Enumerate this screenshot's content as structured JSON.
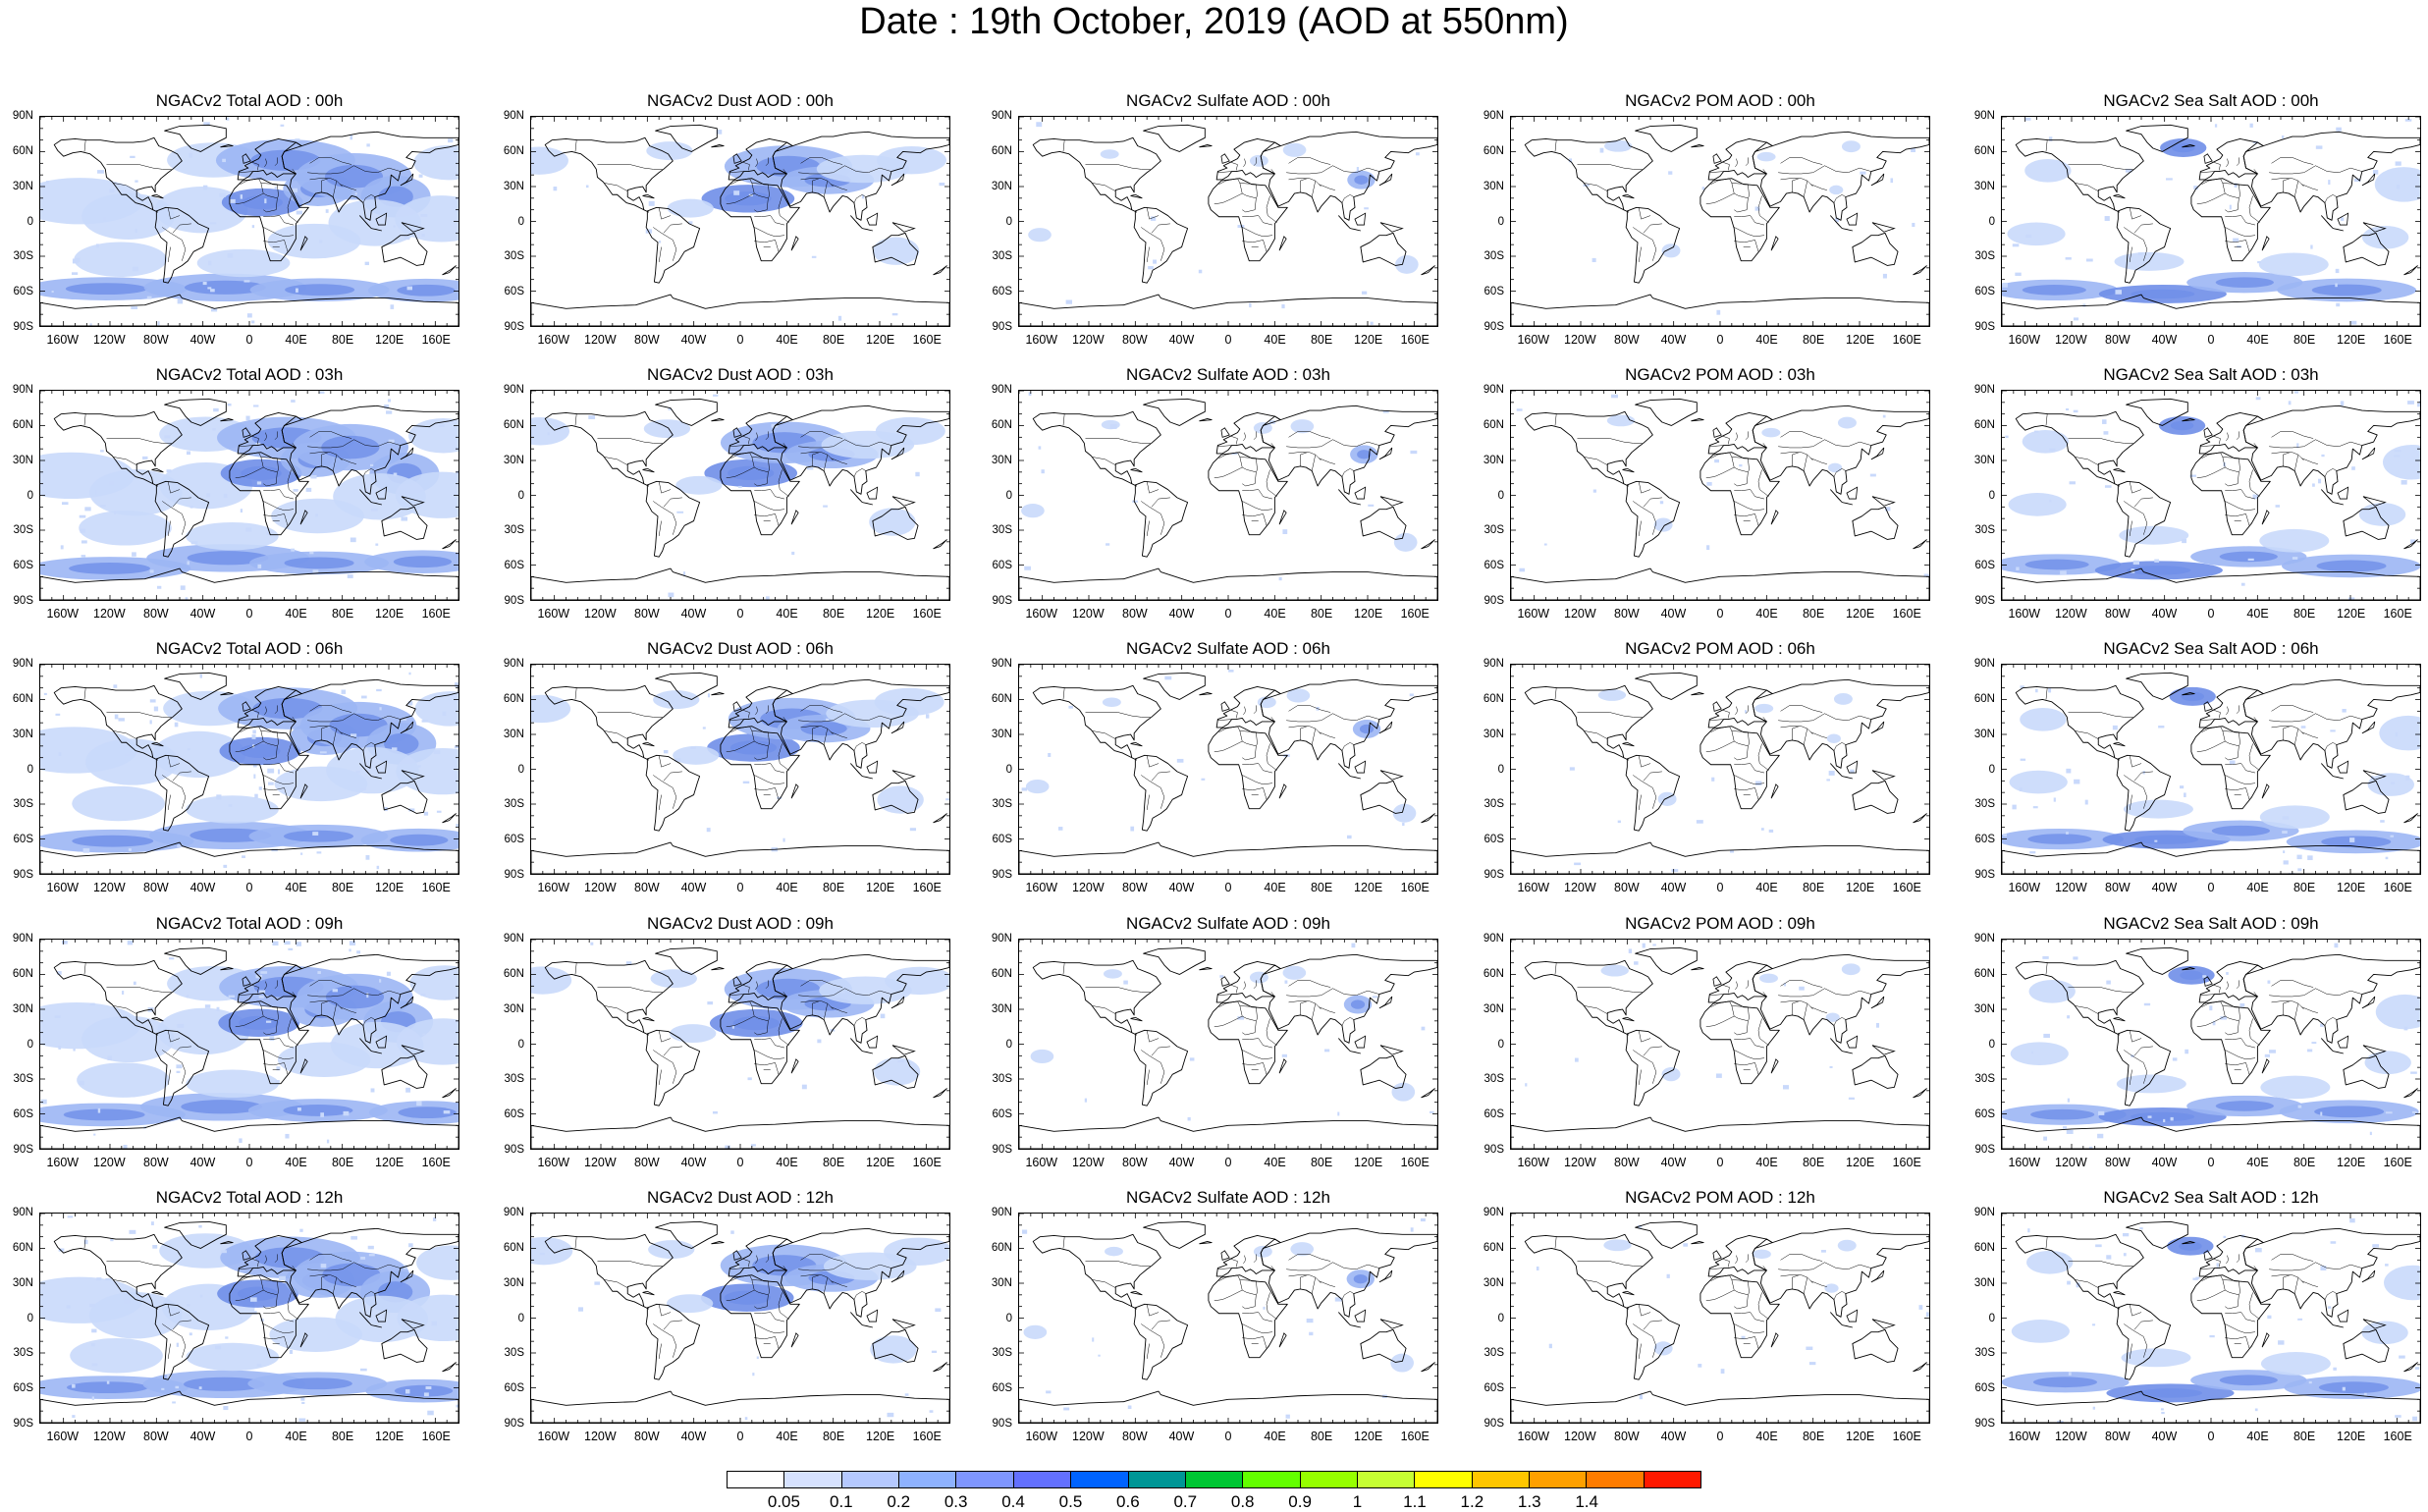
{
  "title": "Date : 19th October, 2019 (AOD at 550nm)",
  "panels": [
    [
      "NGACv2 Total AOD : 00h",
      "NGACv2 Dust AOD : 00h",
      "NGACv2 Sulfate AOD : 00h",
      "NGACv2 POM AOD : 00h",
      "NGACv2 Sea Salt AOD : 00h"
    ],
    [
      "NGACv2 Total AOD : 03h",
      "NGACv2 Dust AOD : 03h",
      "NGACv2 Sulfate AOD : 03h",
      "NGACv2 POM AOD : 03h",
      "NGACv2 Sea Salt AOD : 03h"
    ],
    [
      "NGACv2 Total AOD : 06h",
      "NGACv2 Dust AOD : 06h",
      "NGACv2 Sulfate AOD : 06h",
      "NGACv2 POM AOD : 06h",
      "NGACv2 Sea Salt AOD : 06h"
    ],
    [
      "NGACv2 Total AOD : 09h",
      "NGACv2 Dust AOD : 09h",
      "NGACv2 Sulfate AOD : 09h",
      "NGACv2 POM AOD : 09h",
      "NGACv2 Sea Salt  AOD : 09h"
    ],
    [
      "NGACv2 Total AOD : 12h",
      "NGACv2 Dust AOD : 12h",
      "NGACv2 Sulfate AOD : 12h",
      "NGACv2 POM  AOD : 12h",
      "NGACv2 Sea Salt AOD : 12h"
    ]
  ],
  "lat_ticks": [
    "90N",
    "60N",
    "30N",
    "0",
    "30S",
    "60S",
    "90S"
  ],
  "lon_ticks": [
    "160W",
    "120W",
    "80W",
    "40W",
    "0",
    "40E",
    "80E",
    "120E",
    "160E"
  ],
  "colorbar": {
    "labels": [
      "0.05",
      "0.1",
      "0.2",
      "0.3",
      "0.4",
      "0.5",
      "0.6",
      "0.7",
      "0.8",
      "0.9",
      "1",
      "1.1",
      "1.2",
      "1.3",
      "1.4"
    ],
    "colors": [
      "#ffffff",
      "#d6e2ff",
      "#b5c9ff",
      "#8eb2ff",
      "#7f96ff",
      "#6370ff",
      "#0063ff",
      "#009696",
      "#00c633",
      "#63ff00",
      "#96ff00",
      "#c6ff33",
      "#ffff00",
      "#ffc600",
      "#ffa000",
      "#ff7c00",
      "#ff1900"
    ]
  },
  "field_colors": {
    "light": "#c9d9fb",
    "medium": "#9cb6f4",
    "strong": "#6f8ee8",
    "coast": "#000000"
  }
}
